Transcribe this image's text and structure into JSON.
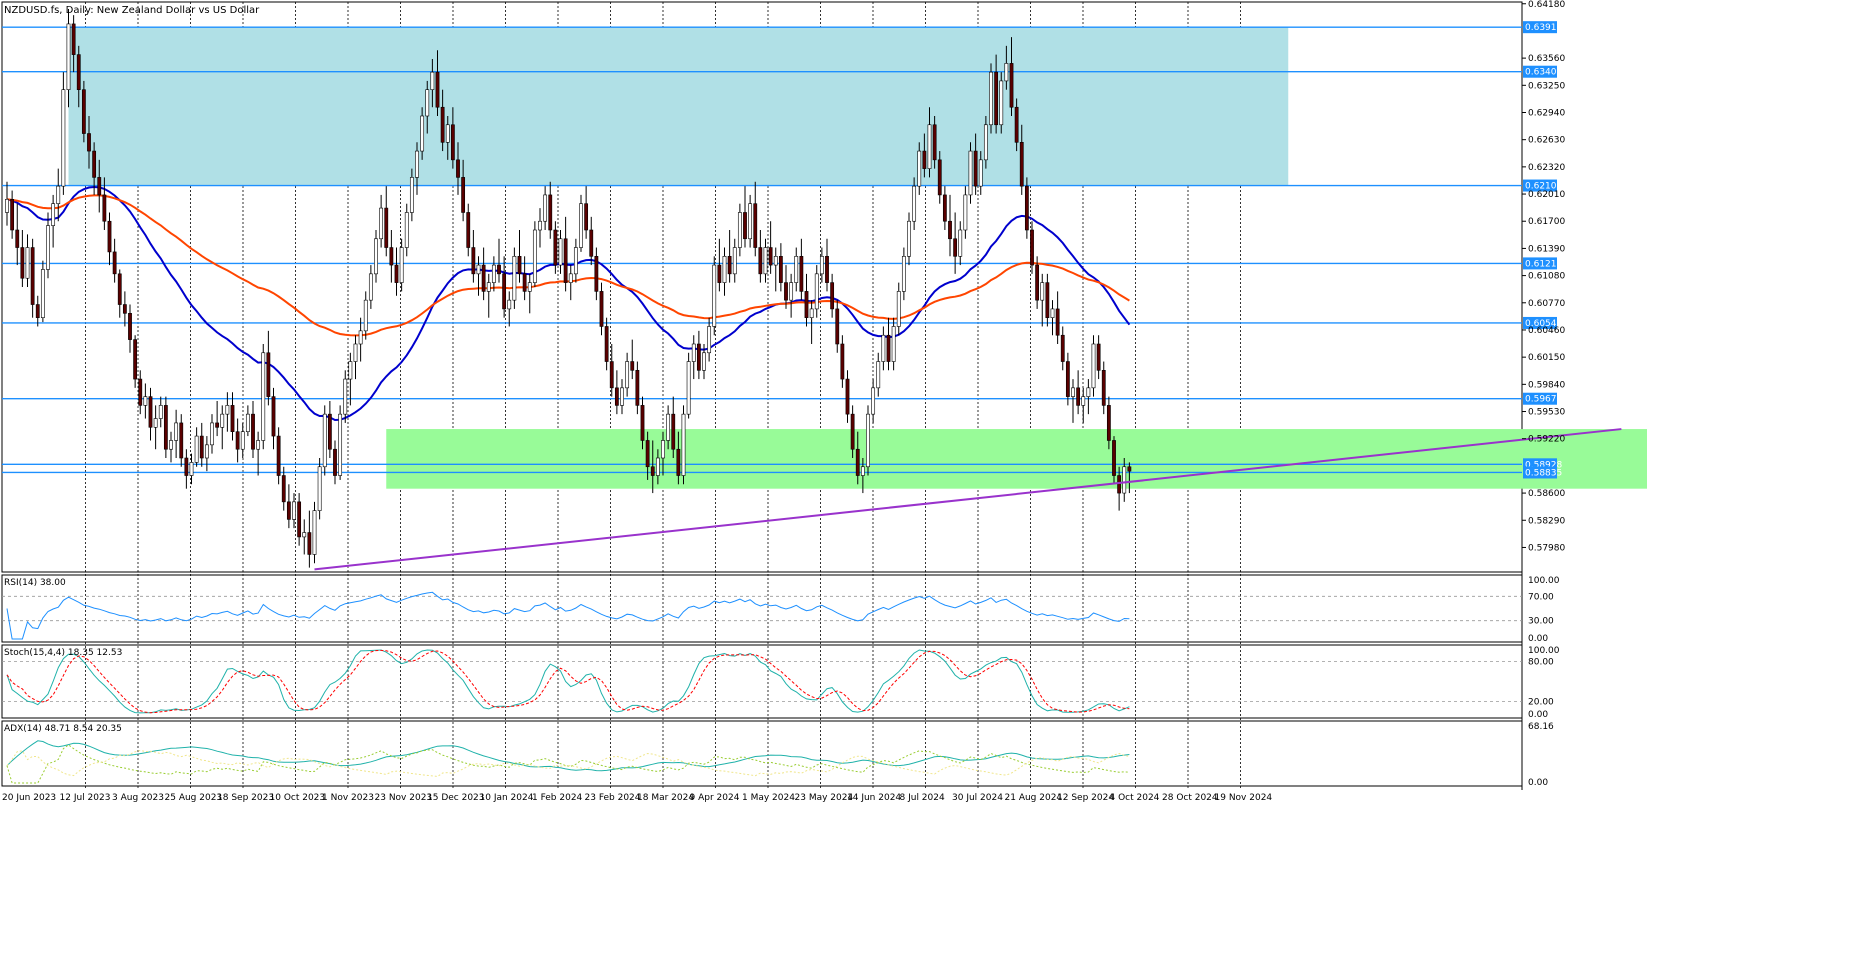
{
  "chart_data": {
    "type": "candlestick",
    "title": "NZDUSD.fs, Daily:  New Zealand Dollar vs US Dollar",
    "price_axis": {
      "ylim": [
        0.577,
        0.642
      ],
      "ticks": [
        "0.64180",
        "0.63560",
        "0.63250",
        "0.62940",
        "0.62630",
        "0.62320",
        "0.62010",
        "0.61700",
        "0.61390",
        "0.61080",
        "0.60770",
        "0.60460",
        "0.60150",
        "0.59840",
        "0.59530",
        "0.59220",
        "0.58600",
        "0.58290",
        "0.57980"
      ]
    },
    "date_labels": [
      "20 Jun 2023",
      "12 Jul 2023",
      "3 Aug 2023",
      "25 Aug 2023",
      "18 Sep 2023",
      "10 Oct 2023",
      "1 Nov 2023",
      "23 Nov 2023",
      "15 Dec 2023",
      "10 Jan 2024",
      "1 Feb 2024",
      "23 Feb 2024",
      "18 Mar 2024",
      "9 Apr 2024",
      "1 May 2024",
      "23 May 2024",
      "14 Jun 2024",
      "8 Jul 2024",
      "30 Jul 2024",
      "21 Aug 2024",
      "12 Sep 2024",
      "4 Oct 2024",
      "28 Oct 2024",
      "19 Nov 2024"
    ],
    "horizontal_levels": [
      {
        "value": 0.63913,
        "label": "0.63913"
      },
      {
        "value": 0.63405,
        "label": "0.63405"
      },
      {
        "value": 0.62107,
        "label": "0.62107"
      },
      {
        "value": 0.61219,
        "label": "0.61219"
      },
      {
        "value": 0.6054,
        "label": "0.60540"
      },
      {
        "value": 0.59676,
        "label": "0.59676"
      },
      {
        "value": 0.58928,
        "label": "0.58928"
      },
      {
        "value": 0.58835,
        "label": "0.58835"
      }
    ],
    "zones": [
      {
        "name": "resistance",
        "color": "#b0e0e6",
        "from": 0.62107,
        "to": 0.63913,
        "start_bar": 12,
        "end_bar": 250
      },
      {
        "name": "support",
        "color": "#98fb98",
        "from": 0.5865,
        "to": 0.5933,
        "start_bar": 74,
        "end_bar": 320
      }
    ],
    "trendline": {
      "color": "#9932cc",
      "bar1": 60,
      "price1": 0.5773,
      "bar2": 315,
      "price2": 0.5933
    },
    "candles_ohlc": [
      [
        0.618,
        0.6215,
        0.6165,
        0.6195
      ],
      [
        0.6195,
        0.6205,
        0.615,
        0.616
      ],
      [
        0.616,
        0.619,
        0.612,
        0.614
      ],
      [
        0.614,
        0.616,
        0.6095,
        0.6105
      ],
      [
        0.6105,
        0.6155,
        0.6095,
        0.614
      ],
      [
        0.614,
        0.615,
        0.606,
        0.6075
      ],
      [
        0.6075,
        0.6085,
        0.605,
        0.606
      ],
      [
        0.606,
        0.6125,
        0.6055,
        0.6115
      ],
      [
        0.6115,
        0.618,
        0.6105,
        0.6165
      ],
      [
        0.6165,
        0.62,
        0.614,
        0.619
      ],
      [
        0.619,
        0.623,
        0.617,
        0.621
      ],
      [
        0.621,
        0.634,
        0.62,
        0.632
      ],
      [
        0.632,
        0.6412,
        0.63,
        0.6395
      ],
      [
        0.6395,
        0.6405,
        0.634,
        0.636
      ],
      [
        0.636,
        0.637,
        0.63,
        0.632
      ],
      [
        0.632,
        0.633,
        0.626,
        0.627
      ],
      [
        0.627,
        0.629,
        0.623,
        0.625
      ],
      [
        0.625,
        0.626,
        0.62,
        0.622
      ],
      [
        0.622,
        0.624,
        0.618,
        0.62
      ],
      [
        0.62,
        0.622,
        0.616,
        0.617
      ],
      [
        0.617,
        0.618,
        0.612,
        0.6135
      ],
      [
        0.6135,
        0.615,
        0.61,
        0.611
      ],
      [
        0.611,
        0.6115,
        0.606,
        0.6075
      ],
      [
        0.6075,
        0.609,
        0.605,
        0.6065
      ],
      [
        0.6065,
        0.6075,
        0.602,
        0.6035
      ],
      [
        0.6035,
        0.604,
        0.598,
        0.599
      ],
      [
        0.599,
        0.6,
        0.595,
        0.596
      ],
      [
        0.596,
        0.5985,
        0.5945,
        0.597
      ],
      [
        0.597,
        0.598,
        0.592,
        0.5935
      ],
      [
        0.5935,
        0.596,
        0.591,
        0.5945
      ],
      [
        0.5945,
        0.597,
        0.5935,
        0.596
      ],
      [
        0.596,
        0.597,
        0.59,
        0.591
      ],
      [
        0.591,
        0.593,
        0.5895,
        0.592
      ],
      [
        0.592,
        0.5955,
        0.59,
        0.594
      ],
      [
        0.594,
        0.595,
        0.589,
        0.59
      ],
      [
        0.59,
        0.591,
        0.5865,
        0.588
      ],
      [
        0.588,
        0.5905,
        0.587,
        0.5895
      ],
      [
        0.5895,
        0.5935,
        0.589,
        0.5925
      ],
      [
        0.5925,
        0.594,
        0.589,
        0.59
      ],
      [
        0.59,
        0.5925,
        0.5885,
        0.5915
      ],
      [
        0.5915,
        0.595,
        0.5905,
        0.594
      ],
      [
        0.594,
        0.5965,
        0.5925,
        0.5935
      ],
      [
        0.5935,
        0.596,
        0.591,
        0.595
      ],
      [
        0.595,
        0.5975,
        0.593,
        0.596
      ],
      [
        0.596,
        0.5975,
        0.592,
        0.593
      ],
      [
        0.593,
        0.5945,
        0.5895,
        0.591
      ],
      [
        0.591,
        0.594,
        0.59,
        0.593
      ],
      [
        0.593,
        0.596,
        0.5925,
        0.595
      ],
      [
        0.595,
        0.5965,
        0.59,
        0.591
      ],
      [
        0.591,
        0.593,
        0.588,
        0.592
      ],
      [
        0.592,
        0.603,
        0.591,
        0.602
      ],
      [
        0.602,
        0.6045,
        0.596,
        0.597
      ],
      [
        0.597,
        0.598,
        0.591,
        0.5925
      ],
      [
        0.5925,
        0.5935,
        0.587,
        0.588
      ],
      [
        0.588,
        0.589,
        0.584,
        0.585
      ],
      [
        0.585,
        0.587,
        0.582,
        0.583
      ],
      [
        0.583,
        0.586,
        0.582,
        0.585
      ],
      [
        0.585,
        0.586,
        0.58,
        0.581
      ],
      [
        0.581,
        0.583,
        0.579,
        0.5815
      ],
      [
        0.5815,
        0.584,
        0.5775,
        0.579
      ],
      [
        0.579,
        0.585,
        0.578,
        0.584
      ],
      [
        0.584,
        0.59,
        0.583,
        0.589
      ],
      [
        0.589,
        0.596,
        0.588,
        0.595
      ],
      [
        0.595,
        0.5965,
        0.59,
        0.591
      ],
      [
        0.591,
        0.592,
        0.587,
        0.588
      ],
      [
        0.588,
        0.596,
        0.5875,
        0.595
      ],
      [
        0.595,
        0.6,
        0.594,
        0.599
      ],
      [
        0.599,
        0.602,
        0.596,
        0.601
      ],
      [
        0.601,
        0.604,
        0.599,
        0.603
      ],
      [
        0.603,
        0.606,
        0.601,
        0.6045
      ],
      [
        0.6045,
        0.609,
        0.6035,
        0.608
      ],
      [
        0.608,
        0.612,
        0.607,
        0.611
      ],
      [
        0.611,
        0.616,
        0.61,
        0.615
      ],
      [
        0.615,
        0.62,
        0.614,
        0.6185
      ],
      [
        0.6185,
        0.621,
        0.613,
        0.614
      ],
      [
        0.614,
        0.616,
        0.61,
        0.612
      ],
      [
        0.612,
        0.614,
        0.6085,
        0.61
      ],
      [
        0.61,
        0.615,
        0.609,
        0.614
      ],
      [
        0.614,
        0.619,
        0.613,
        0.618
      ],
      [
        0.618,
        0.623,
        0.617,
        0.622
      ],
      [
        0.622,
        0.626,
        0.62,
        0.625
      ],
      [
        0.625,
        0.63,
        0.624,
        0.629
      ],
      [
        0.629,
        0.633,
        0.627,
        0.632
      ],
      [
        0.632,
        0.6355,
        0.63,
        0.634
      ],
      [
        0.634,
        0.6365,
        0.629,
        0.63
      ],
      [
        0.63,
        0.632,
        0.625,
        0.626
      ],
      [
        0.626,
        0.629,
        0.624,
        0.628
      ],
      [
        0.628,
        0.63,
        0.623,
        0.624
      ],
      [
        0.624,
        0.626,
        0.62,
        0.622
      ],
      [
        0.622,
        0.624,
        0.617,
        0.618
      ],
      [
        0.618,
        0.619,
        0.613,
        0.614
      ],
      [
        0.614,
        0.616,
        0.61,
        0.611
      ],
      [
        0.611,
        0.613,
        0.6085,
        0.612
      ],
      [
        0.612,
        0.614,
        0.608,
        0.609
      ],
      [
        0.609,
        0.611,
        0.606,
        0.61
      ],
      [
        0.61,
        0.613,
        0.609,
        0.612
      ],
      [
        0.612,
        0.615,
        0.61,
        0.611
      ],
      [
        0.611,
        0.613,
        0.606,
        0.607
      ],
      [
        0.607,
        0.609,
        0.605,
        0.608
      ],
      [
        0.608,
        0.614,
        0.607,
        0.613
      ],
      [
        0.613,
        0.616,
        0.61,
        0.611
      ],
      [
        0.611,
        0.613,
        0.608,
        0.609
      ],
      [
        0.609,
        0.611,
        0.6065,
        0.61
      ],
      [
        0.61,
        0.617,
        0.6095,
        0.616
      ],
      [
        0.616,
        0.6185,
        0.614,
        0.617
      ],
      [
        0.617,
        0.621,
        0.616,
        0.62
      ],
      [
        0.62,
        0.6215,
        0.615,
        0.616
      ],
      [
        0.616,
        0.617,
        0.611,
        0.612
      ],
      [
        0.612,
        0.616,
        0.611,
        0.615
      ],
      [
        0.615,
        0.6175,
        0.609,
        0.61
      ],
      [
        0.61,
        0.612,
        0.608,
        0.611
      ],
      [
        0.611,
        0.615,
        0.61,
        0.614
      ],
      [
        0.614,
        0.62,
        0.6135,
        0.619
      ],
      [
        0.619,
        0.621,
        0.615,
        0.616
      ],
      [
        0.616,
        0.6175,
        0.612,
        0.613
      ],
      [
        0.613,
        0.614,
        0.608,
        0.609
      ],
      [
        0.609,
        0.61,
        0.604,
        0.605
      ],
      [
        0.605,
        0.606,
        0.6,
        0.601
      ],
      [
        0.601,
        0.603,
        0.597,
        0.598
      ],
      [
        0.598,
        0.6,
        0.595,
        0.596
      ],
      [
        0.596,
        0.599,
        0.595,
        0.598
      ],
      [
        0.598,
        0.602,
        0.597,
        0.601
      ],
      [
        0.601,
        0.6035,
        0.599,
        0.6
      ],
      [
        0.6,
        0.601,
        0.595,
        0.596
      ],
      [
        0.596,
        0.597,
        0.591,
        0.592
      ],
      [
        0.592,
        0.593,
        0.5875,
        0.589
      ],
      [
        0.589,
        0.592,
        0.586,
        0.588
      ],
      [
        0.588,
        0.591,
        0.587,
        0.59
      ],
      [
        0.59,
        0.593,
        0.588,
        0.592
      ],
      [
        0.592,
        0.596,
        0.591,
        0.595
      ],
      [
        0.595,
        0.597,
        0.59,
        0.591
      ],
      [
        0.591,
        0.593,
        0.587,
        0.588
      ],
      [
        0.588,
        0.596,
        0.587,
        0.595
      ],
      [
        0.595,
        0.602,
        0.5945,
        0.601
      ],
      [
        0.601,
        0.604,
        0.599,
        0.603
      ],
      [
        0.603,
        0.6045,
        0.599,
        0.6
      ],
      [
        0.6,
        0.603,
        0.599,
        0.602
      ],
      [
        0.602,
        0.606,
        0.601,
        0.605
      ],
      [
        0.605,
        0.613,
        0.604,
        0.612
      ],
      [
        0.612,
        0.615,
        0.609,
        0.61
      ],
      [
        0.61,
        0.614,
        0.6085,
        0.613
      ],
      [
        0.613,
        0.616,
        0.61,
        0.611
      ],
      [
        0.611,
        0.615,
        0.61,
        0.614
      ],
      [
        0.614,
        0.619,
        0.613,
        0.618
      ],
      [
        0.618,
        0.621,
        0.614,
        0.615
      ],
      [
        0.615,
        0.62,
        0.614,
        0.619
      ],
      [
        0.619,
        0.6215,
        0.613,
        0.614
      ],
      [
        0.614,
        0.616,
        0.61,
        0.611
      ],
      [
        0.611,
        0.615,
        0.61,
        0.614
      ],
      [
        0.614,
        0.617,
        0.611,
        0.612
      ],
      [
        0.612,
        0.614,
        0.609,
        0.613
      ],
      [
        0.613,
        0.6145,
        0.609,
        0.61
      ],
      [
        0.61,
        0.612,
        0.607,
        0.608
      ],
      [
        0.608,
        0.611,
        0.606,
        0.61
      ],
      [
        0.61,
        0.614,
        0.609,
        0.613
      ],
      [
        0.613,
        0.615,
        0.608,
        0.609
      ],
      [
        0.609,
        0.611,
        0.605,
        0.606
      ],
      [
        0.606,
        0.608,
        0.603,
        0.607
      ],
      [
        0.607,
        0.612,
        0.606,
        0.611
      ],
      [
        0.611,
        0.614,
        0.61,
        0.613
      ],
      [
        0.613,
        0.615,
        0.609,
        0.61
      ],
      [
        0.61,
        0.611,
        0.606,
        0.607
      ],
      [
        0.607,
        0.608,
        0.602,
        0.603
      ],
      [
        0.603,
        0.604,
        0.598,
        0.599
      ],
      [
        0.599,
        0.6,
        0.594,
        0.595
      ],
      [
        0.595,
        0.596,
        0.59,
        0.591
      ],
      [
        0.591,
        0.593,
        0.587,
        0.588
      ],
      [
        0.588,
        0.59,
        0.586,
        0.589
      ],
      [
        0.589,
        0.596,
        0.588,
        0.595
      ],
      [
        0.595,
        0.599,
        0.594,
        0.598
      ],
      [
        0.598,
        0.602,
        0.597,
        0.601
      ],
      [
        0.601,
        0.605,
        0.6,
        0.604
      ],
      [
        0.604,
        0.606,
        0.6,
        0.601
      ],
      [
        0.601,
        0.606,
        0.6,
        0.605
      ],
      [
        0.605,
        0.61,
        0.604,
        0.609
      ],
      [
        0.609,
        0.614,
        0.608,
        0.613
      ],
      [
        0.613,
        0.618,
        0.612,
        0.617
      ],
      [
        0.617,
        0.622,
        0.616,
        0.621
      ],
      [
        0.621,
        0.626,
        0.62,
        0.625
      ],
      [
        0.625,
        0.627,
        0.622,
        0.623
      ],
      [
        0.623,
        0.63,
        0.622,
        0.628
      ],
      [
        0.628,
        0.629,
        0.623,
        0.624
      ],
      [
        0.624,
        0.625,
        0.619,
        0.62
      ],
      [
        0.62,
        0.621,
        0.616,
        0.617
      ],
      [
        0.617,
        0.62,
        0.613,
        0.615
      ],
      [
        0.615,
        0.618,
        0.611,
        0.613
      ],
      [
        0.613,
        0.617,
        0.612,
        0.616
      ],
      [
        0.616,
        0.621,
        0.615,
        0.62
      ],
      [
        0.62,
        0.626,
        0.619,
        0.625
      ],
      [
        0.625,
        0.627,
        0.62,
        0.621
      ],
      [
        0.621,
        0.625,
        0.62,
        0.624
      ],
      [
        0.624,
        0.629,
        0.623,
        0.628
      ],
      [
        0.628,
        0.635,
        0.627,
        0.634
      ],
      [
        0.634,
        0.636,
        0.627,
        0.628
      ],
      [
        0.628,
        0.634,
        0.627,
        0.633
      ],
      [
        0.633,
        0.637,
        0.632,
        0.635
      ],
      [
        0.635,
        0.638,
        0.629,
        0.63
      ],
      [
        0.63,
        0.631,
        0.625,
        0.626
      ],
      [
        0.626,
        0.628,
        0.62,
        0.621
      ],
      [
        0.621,
        0.622,
        0.615,
        0.616
      ],
      [
        0.616,
        0.617,
        0.611,
        0.612
      ],
      [
        0.612,
        0.613,
        0.607,
        0.608
      ],
      [
        0.608,
        0.611,
        0.605,
        0.61
      ],
      [
        0.61,
        0.611,
        0.605,
        0.606
      ],
      [
        0.606,
        0.608,
        0.604,
        0.607
      ],
      [
        0.607,
        0.609,
        0.603,
        0.604
      ],
      [
        0.604,
        0.605,
        0.6,
        0.601
      ],
      [
        0.601,
        0.602,
        0.596,
        0.597
      ],
      [
        0.597,
        0.599,
        0.594,
        0.598
      ],
      [
        0.598,
        0.6,
        0.595,
        0.596
      ],
      [
        0.596,
        0.598,
        0.594,
        0.597
      ],
      [
        0.597,
        0.599,
        0.595,
        0.598
      ],
      [
        0.598,
        0.604,
        0.597,
        0.603
      ],
      [
        0.603,
        0.604,
        0.599,
        0.6
      ],
      [
        0.6,
        0.601,
        0.595,
        0.596
      ],
      [
        0.596,
        0.597,
        0.591,
        0.592
      ],
      [
        0.592,
        0.5925,
        0.587,
        0.588
      ],
      [
        0.588,
        0.589,
        0.584,
        0.586
      ],
      [
        0.586,
        0.59,
        0.585,
        0.589
      ],
      [
        0.589,
        0.5895,
        0.586,
        0.5885
      ]
    ],
    "moving_averages": [
      {
        "color": "#0000cd",
        "end_bar": 241
      },
      {
        "color": "#ff4500",
        "end_bar": 241
      }
    ],
    "indicators": [
      {
        "name": "RSI(14) 38.00",
        "ticks": [
          "100.00",
          "70.00",
          "30.00",
          "0.00"
        ],
        "range": [
          0,
          100
        ],
        "levels": [
          70,
          30
        ]
      },
      {
        "name": "Stoch(15,4,4) 18.35 12.53",
        "ticks": [
          "100.00",
          "80.00",
          "20.00",
          "0.00"
        ],
        "range": [
          0,
          100
        ],
        "levels": [
          80,
          20
        ]
      },
      {
        "name": "ADX(14) 48.71 8.54 20.35",
        "ticks": [
          "68.16",
          "0.00"
        ],
        "range": [
          0,
          68.16
        ],
        "levels": []
      }
    ]
  }
}
